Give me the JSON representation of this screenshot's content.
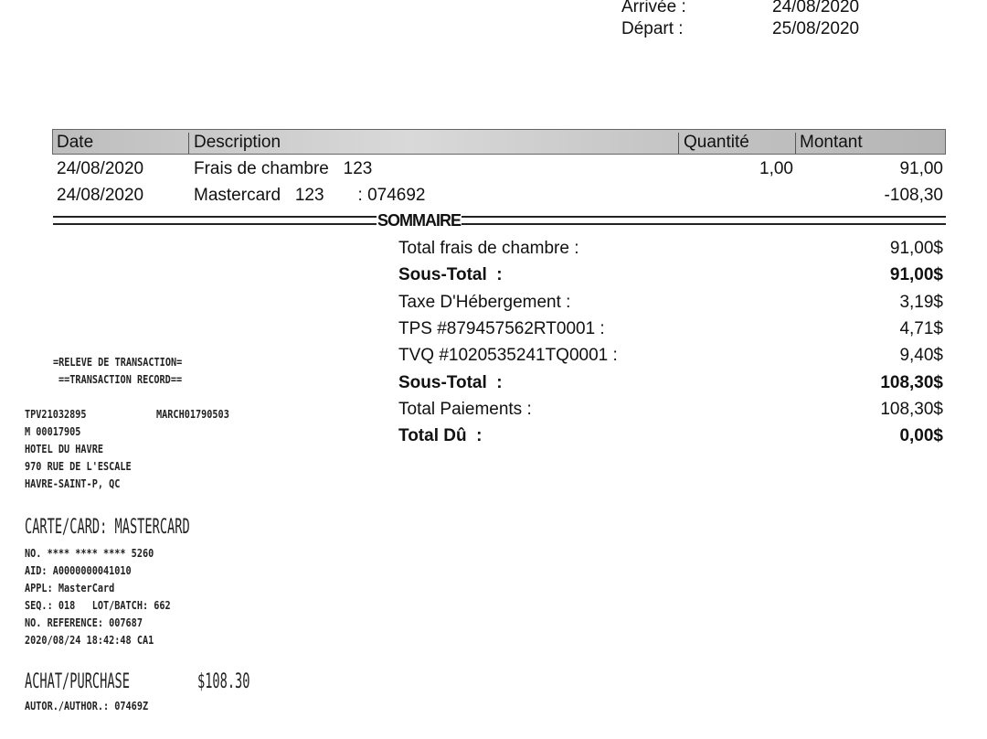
{
  "stay": {
    "arrival_label": "Arrivée :",
    "arrival": "24/08/2020",
    "departure_label": "Départ :",
    "departure": "25/08/2020"
  },
  "table": {
    "headers": [
      "Date",
      "Description",
      "Quantité",
      "Montant"
    ],
    "rows": [
      {
        "date": "24/08/2020",
        "description": "Frais de chambre   123",
        "qty": "1,00",
        "amount": "91,00"
      },
      {
        "date": "24/08/2020",
        "description": "Mastercard   123       : 074692",
        "qty": "",
        "amount": "-108,30"
      }
    ]
  },
  "summary": {
    "title": "SOMMAIRE",
    "lines": [
      {
        "label": "Total frais de chambre :",
        "value": "91,00$",
        "bold": false
      },
      {
        "label": "Sous-Total  :",
        "value": "91,00$",
        "bold": true
      },
      {
        "label": "Taxe D'Hébergement :",
        "value": "3,19$",
        "bold": false
      },
      {
        "label": "TPS #879457562RT0001 :",
        "value": "4,71$",
        "bold": false
      },
      {
        "label": "TVQ #1020535241TQ0001 :",
        "value": "9,40$",
        "bold": false
      },
      {
        "label": "Sous-Total  :",
        "value": "108,30$",
        "bold": true
      },
      {
        "label": "Total Paiements :",
        "value": "108,30$",
        "bold": false
      },
      {
        "label": "Total Dû  :",
        "value": "0,00$",
        "bold": true
      }
    ]
  },
  "receipt": {
    "title1": "=RELEVE DE TRANSACTION=",
    "title2": "==TRANSACTION RECORD==",
    "terminal": "TPV21032895",
    "merchant": "MARCH01790503",
    "m_id": "M 00017905",
    "hotel": "HOTEL DU HAVRE",
    "address": "970 RUE DE L'ESCALE",
    "city": "HAVRE-SAINT-P, QC",
    "card": "CARTE/CARD: MASTERCARD",
    "lines": [
      "NO. **** **** **** 5260",
      "AID: A0000000041010",
      "APPL: MasterCard",
      "SEQ.: 018   LOT/BATCH: 662",
      "NO. REFERENCE: 007687",
      "2020/08/24 18:42:48 CA1"
    ],
    "purchase_label": "ACHAT/PURCHASE",
    "purchase_amount": "$108.30",
    "author": "AUTOR./AUTHOR.: 07469Z"
  }
}
